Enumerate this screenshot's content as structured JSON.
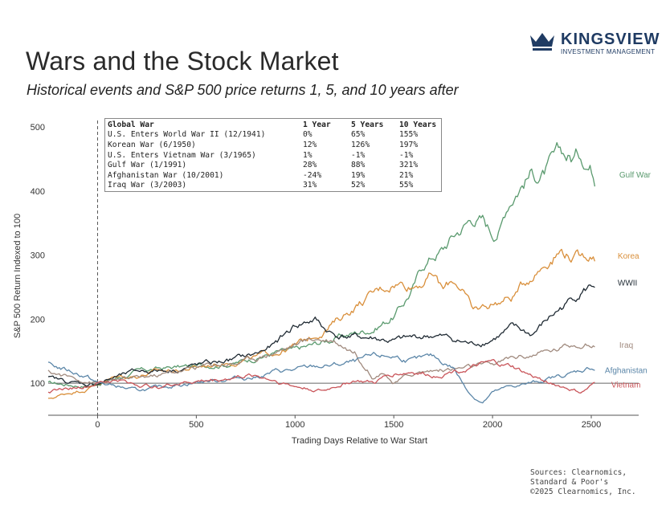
{
  "header": {
    "title": "Wars and the Stock Market",
    "subtitle": "Historical events and S&P 500 price returns 1, 5, and 10 years after"
  },
  "logo": {
    "name": "KINGSVIEW",
    "tagline": "INVESTMENT MANAGEMENT",
    "color": "#1f3b63"
  },
  "sources": [
    "Sources: Clearnomics,",
    "Standard & Poor's",
    "©2025 Clearnomics, Inc."
  ],
  "table": {
    "headers": [
      "Global War",
      "1 Year",
      "5 Years",
      "10 Years"
    ],
    "rows": [
      [
        "U.S. Enters World War II (12/1941)",
        "0%",
        "65%",
        "155%"
      ],
      [
        "Korean War (6/1950)",
        "12%",
        "126%",
        "197%"
      ],
      [
        "U.S. Enters Vietnam War (3/1965)",
        "1%",
        "-1%",
        "-1%"
      ],
      [
        "Gulf War (1/1991)",
        "28%",
        "88%",
        "321%"
      ],
      [
        "Afghanistan War (10/2001)",
        "-24%",
        "19%",
        "21%"
      ],
      [
        "Iraq War (3/2003)",
        "31%",
        "52%",
        "55%"
      ]
    ]
  },
  "chart_data": {
    "type": "line",
    "title": "Wars and the Stock Market",
    "xlabel": "Trading Days Relative to War Start",
    "ylabel": "S&P 500 Return Indexed to 100",
    "xlim": [
      -250,
      2740
    ],
    "ylim": [
      50,
      510
    ],
    "xticks": [
      0,
      500,
      1000,
      1500,
      2000,
      2500
    ],
    "yticks": [
      100,
      200,
      300,
      400,
      500
    ],
    "reference_line_y": 100,
    "vertical_marker_x": 0,
    "series": [
      {
        "name": "Gulf War",
        "color": "#5a9a6e",
        "points": [
          [
            -250,
            100
          ],
          [
            -150,
            98
          ],
          [
            -50,
            96
          ],
          [
            0,
            100
          ],
          [
            100,
            108
          ],
          [
            200,
            118
          ],
          [
            300,
            122
          ],
          [
            400,
            125
          ],
          [
            500,
            126
          ],
          [
            600,
            130
          ],
          [
            700,
            132
          ],
          [
            800,
            140
          ],
          [
            900,
            148
          ],
          [
            1000,
            150
          ],
          [
            1100,
            160
          ],
          [
            1200,
            170
          ],
          [
            1300,
            178
          ],
          [
            1400,
            186
          ],
          [
            1500,
            205
          ],
          [
            1550,
            225
          ],
          [
            1600,
            250
          ],
          [
            1650,
            285
          ],
          [
            1700,
            300
          ],
          [
            1750,
            310
          ],
          [
            1800,
            330
          ],
          [
            1850,
            345
          ],
          [
            1900,
            360
          ],
          [
            1950,
            355
          ],
          [
            2000,
            335
          ],
          [
            2040,
            345
          ],
          [
            2080,
            385
          ],
          [
            2120,
            405
          ],
          [
            2160,
            420
          ],
          [
            2200,
            430
          ],
          [
            2250,
            425
          ],
          [
            2300,
            440
          ],
          [
            2350,
            455
          ],
          [
            2400,
            450
          ],
          [
            2450,
            460
          ],
          [
            2500,
            440
          ],
          [
            2520,
            425
          ]
        ]
      },
      {
        "name": "Korea",
        "color": "#d98f3b",
        "points": [
          [
            -250,
            75
          ],
          [
            -150,
            85
          ],
          [
            -50,
            92
          ],
          [
            0,
            100
          ],
          [
            100,
            110
          ],
          [
            200,
            112
          ],
          [
            300,
            118
          ],
          [
            400,
            120
          ],
          [
            500,
            125
          ],
          [
            600,
            130
          ],
          [
            700,
            135
          ],
          [
            800,
            140
          ],
          [
            900,
            148
          ],
          [
            1000,
            158
          ],
          [
            1100,
            175
          ],
          [
            1200,
            195
          ],
          [
            1300,
            220
          ],
          [
            1400,
            240
          ],
          [
            1500,
            258
          ],
          [
            1600,
            255
          ],
          [
            1700,
            270
          ],
          [
            1750,
            245
          ],
          [
            1800,
            260
          ],
          [
            1850,
            250
          ],
          [
            1900,
            210
          ],
          [
            2000,
            225
          ],
          [
            2100,
            235
          ],
          [
            2200,
            270
          ],
          [
            2300,
            300
          ],
          [
            2350,
            310
          ],
          [
            2400,
            300
          ],
          [
            2450,
            295
          ],
          [
            2500,
            305
          ],
          [
            2520,
            298
          ]
        ]
      },
      {
        "name": "WWII",
        "color": "#1f2a33",
        "points": [
          [
            -250,
            108
          ],
          [
            -150,
            102
          ],
          [
            -50,
            98
          ],
          [
            0,
            100
          ],
          [
            100,
            110
          ],
          [
            200,
            118
          ],
          [
            300,
            120
          ],
          [
            400,
            122
          ],
          [
            500,
            128
          ],
          [
            600,
            132
          ],
          [
            700,
            138
          ],
          [
            800,
            145
          ],
          [
            900,
            160
          ],
          [
            1000,
            190
          ],
          [
            1100,
            200
          ],
          [
            1150,
            185
          ],
          [
            1200,
            175
          ],
          [
            1300,
            172
          ],
          [
            1400,
            170
          ],
          [
            1500,
            165
          ],
          [
            1600,
            170
          ],
          [
            1700,
            175
          ],
          [
            1800,
            168
          ],
          [
            1900,
            160
          ],
          [
            2000,
            170
          ],
          [
            2100,
            185
          ],
          [
            2200,
            175
          ],
          [
            2300,
            205
          ],
          [
            2400,
            230
          ],
          [
            2450,
            245
          ],
          [
            2500,
            252
          ],
          [
            2520,
            255
          ]
        ]
      },
      {
        "name": "Iraq",
        "color": "#a08a7e",
        "points": [
          [
            -250,
            118
          ],
          [
            -150,
            110
          ],
          [
            -50,
            104
          ],
          [
            0,
            100
          ],
          [
            100,
            104
          ],
          [
            200,
            108
          ],
          [
            300,
            112
          ],
          [
            400,
            118
          ],
          [
            500,
            125
          ],
          [
            600,
            130
          ],
          [
            700,
            132
          ],
          [
            800,
            140
          ],
          [
            900,
            150
          ],
          [
            1000,
            160
          ],
          [
            1100,
            170
          ],
          [
            1200,
            168
          ],
          [
            1300,
            150
          ],
          [
            1350,
            130
          ],
          [
            1400,
            110
          ],
          [
            1450,
            120
          ],
          [
            1500,
            100
          ],
          [
            1600,
            115
          ],
          [
            1700,
            120
          ],
          [
            1800,
            122
          ],
          [
            1900,
            125
          ],
          [
            2000,
            128
          ],
          [
            2100,
            140
          ],
          [
            2200,
            145
          ],
          [
            2300,
            150
          ],
          [
            2400,
            160
          ],
          [
            2450,
            165
          ],
          [
            2500,
            160
          ],
          [
            2520,
            158
          ]
        ]
      },
      {
        "name": "Afghanistan",
        "color": "#5b86a8",
        "points": [
          [
            -250,
            130
          ],
          [
            -150,
            120
          ],
          [
            -50,
            110
          ],
          [
            0,
            100
          ],
          [
            100,
            95
          ],
          [
            200,
            88
          ],
          [
            300,
            92
          ],
          [
            400,
            98
          ],
          [
            500,
            102
          ],
          [
            600,
            105
          ],
          [
            700,
            108
          ],
          [
            800,
            110
          ],
          [
            900,
            118
          ],
          [
            1000,
            120
          ],
          [
            1100,
            125
          ],
          [
            1200,
            128
          ],
          [
            1300,
            132
          ],
          [
            1400,
            140
          ],
          [
            1500,
            142
          ],
          [
            1600,
            135
          ],
          [
            1700,
            140
          ],
          [
            1800,
            125
          ],
          [
            1850,
            100
          ],
          [
            1900,
            80
          ],
          [
            1950,
            70
          ],
          [
            2000,
            85
          ],
          [
            2100,
            95
          ],
          [
            2200,
            100
          ],
          [
            2300,
            108
          ],
          [
            2400,
            115
          ],
          [
            2450,
            120
          ],
          [
            2500,
            125
          ],
          [
            2520,
            122
          ]
        ]
      },
      {
        "name": "Vietnam",
        "color": "#c9555a",
        "points": [
          [
            -250,
            88
          ],
          [
            -150,
            92
          ],
          [
            -50,
            96
          ],
          [
            0,
            100
          ],
          [
            100,
            105
          ],
          [
            200,
            98
          ],
          [
            300,
            95
          ],
          [
            400,
            100
          ],
          [
            500,
            103
          ],
          [
            600,
            105
          ],
          [
            700,
            110
          ],
          [
            800,
            112
          ],
          [
            900,
            105
          ],
          [
            1000,
            95
          ],
          [
            1100,
            90
          ],
          [
            1150,
            88
          ],
          [
            1200,
            95
          ],
          [
            1300,
            105
          ],
          [
            1400,
            100
          ],
          [
            1450,
            108
          ],
          [
            1500,
            115
          ],
          [
            1600,
            118
          ],
          [
            1700,
            112
          ],
          [
            1800,
            120
          ],
          [
            1900,
            125
          ],
          [
            2000,
            130
          ],
          [
            2100,
            125
          ],
          [
            2200,
            110
          ],
          [
            2300,
            100
          ],
          [
            2400,
            90
          ],
          [
            2450,
            85
          ],
          [
            2500,
            95
          ],
          [
            2520,
            98
          ]
        ]
      }
    ]
  }
}
